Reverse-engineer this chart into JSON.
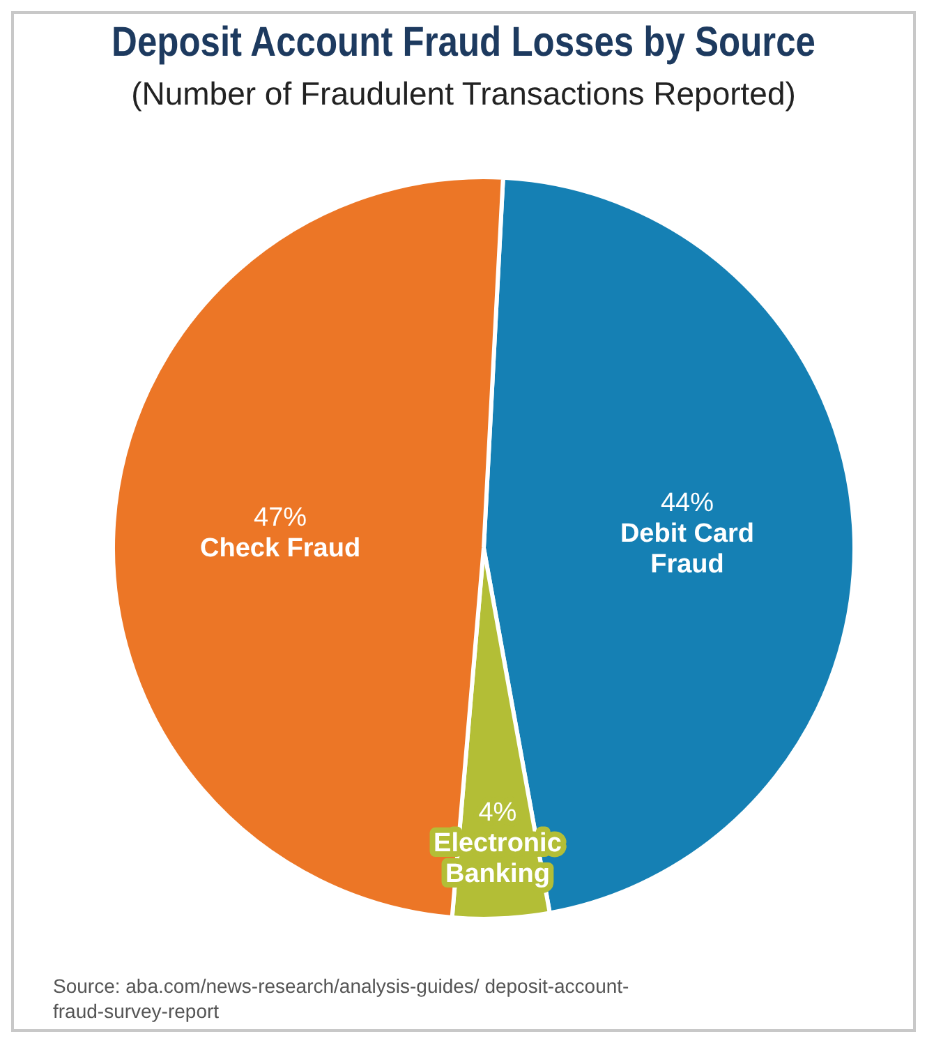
{
  "chart_data": {
    "type": "pie",
    "title": "Deposit Account Fraud Losses by Source",
    "subtitle": "(Number of Fraudulent Transactions Reported)",
    "categories": [
      "Debit Card Fraud",
      "Electronic Banking",
      "Check Fraud"
    ],
    "values": [
      44,
      4,
      47
    ],
    "colors": [
      "#1580b4",
      "#b3be36",
      "#ec7626"
    ],
    "value_labels": [
      "44%",
      "4%",
      "47%"
    ],
    "legend": false,
    "annotations": [
      "Source: aba.com/news-research/analysis-guides/ deposit-account-fraud-survey-report"
    ]
  }
}
